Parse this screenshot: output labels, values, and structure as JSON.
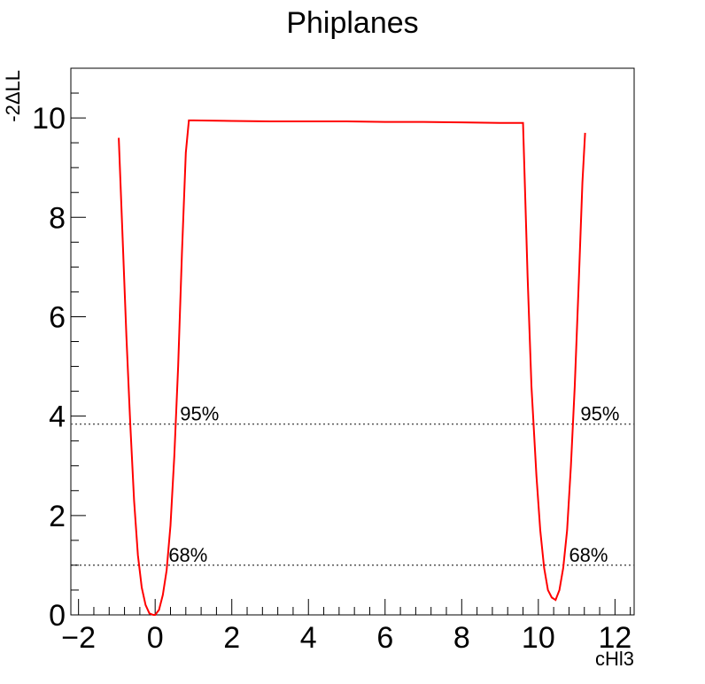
{
  "chart_data": {
    "type": "line",
    "title": "Phiplanes",
    "xlabel": "cHl3",
    "ylabel": "-2ΔLL",
    "xlim": [
      -2.2,
      12.5
    ],
    "ylim": [
      0,
      11
    ],
    "x_ticks": [
      -2,
      0,
      2,
      4,
      6,
      8,
      10,
      12
    ],
    "x_tick_labels": [
      "−2",
      "0",
      "2",
      "4",
      "6",
      "8",
      "10",
      "12"
    ],
    "y_ticks": [
      0,
      2,
      4,
      6,
      8,
      10
    ],
    "y_tick_labels": [
      "0",
      "2",
      "4",
      "6",
      "8",
      "10"
    ],
    "grid": false,
    "line_color": "#ff0000",
    "reference_lines": [
      {
        "y": 1.0,
        "label": "68%",
        "style": "dotted",
        "color": "#555555"
      },
      {
        "y": 3.84,
        "label": "95%",
        "style": "dotted",
        "color": "#555555"
      }
    ],
    "reference_label_positions": {
      "68%": [
        0.35,
        10.8
      ],
      "95%": [
        0.65,
        11.1
      ]
    },
    "series": [
      {
        "x": [
          -0.95,
          -0.85,
          -0.75,
          -0.65,
          -0.55,
          -0.45,
          -0.35,
          -0.25,
          -0.15,
          -0.05,
          0.0,
          0.1,
          0.2,
          0.3,
          0.4,
          0.5,
          0.6,
          0.7,
          0.8,
          0.88,
          1.0,
          2.0,
          3.0,
          4.0,
          5.0,
          6.0,
          7.0,
          8.0,
          9.0,
          9.6,
          9.72,
          9.82,
          9.95,
          10.05,
          10.15,
          10.25,
          10.35,
          10.45,
          10.55,
          10.65,
          10.75,
          10.85,
          10.95,
          11.05,
          11.15,
          11.22
        ],
        "y": [
          9.6,
          7.6,
          5.6,
          3.85,
          2.3,
          1.2,
          0.55,
          0.2,
          0.03,
          0.0,
          0.0,
          0.1,
          0.4,
          0.9,
          1.8,
          3.2,
          5.0,
          7.3,
          9.3,
          9.95,
          9.95,
          9.94,
          9.93,
          9.93,
          9.93,
          9.92,
          9.92,
          9.91,
          9.9,
          9.9,
          6.8,
          4.6,
          2.8,
          1.7,
          0.95,
          0.5,
          0.35,
          0.3,
          0.5,
          0.95,
          1.7,
          3.0,
          4.6,
          6.6,
          8.7,
          9.7
        ]
      }
    ]
  }
}
